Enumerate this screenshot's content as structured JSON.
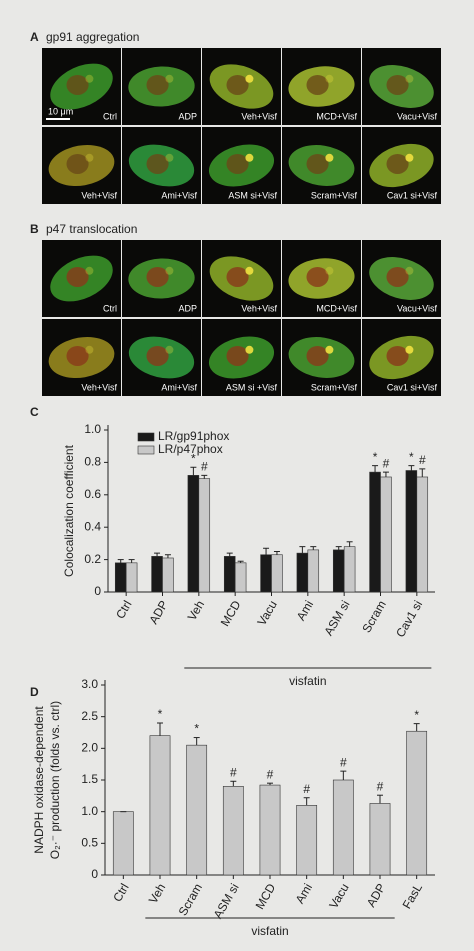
{
  "panels": {
    "A": {
      "label": "A",
      "title": "gp91 aggregation",
      "scale_bar": "10 μm",
      "images": [
        "Ctrl",
        "ADP",
        "Veh+Visf",
        "MCD+Visf",
        "Vacu+Visf",
        "Veh+Visf",
        "Ami+Visf",
        "ASM si+Visf",
        "Scram+Visf",
        "Cav1 si+Visf"
      ]
    },
    "B": {
      "label": "B",
      "title": "p47 translocation",
      "images": [
        "Ctrl",
        "ADP",
        "Veh+Visf",
        "MCD+Visf",
        "Vacu+Visf",
        "Veh+Visf",
        "Ami+Visf",
        "ASM si +Visf",
        "Scram+Visf",
        "Cav1 si+Visf"
      ]
    }
  },
  "chart_data": [
    {
      "type": "bar",
      "panel_label": "C",
      "ylabel": [
        "Colocalization coefficient"
      ],
      "bracket_label": "visfatin",
      "categories": [
        "Ctrl",
        "ADP",
        "Veh",
        "MCD",
        "Vacu",
        "Ami",
        "ASM si",
        "Scram",
        "Cav1 si"
      ],
      "series": [
        {
          "name": "LR/gp91phox",
          "color": "#1a1a1a",
          "values": [
            0.18,
            0.22,
            0.72,
            0.22,
            0.23,
            0.24,
            0.26,
            0.74,
            0.75
          ],
          "errors": [
            0.02,
            0.02,
            0.05,
            0.02,
            0.04,
            0.04,
            0.02,
            0.04,
            0.03
          ],
          "markers": [
            null,
            null,
            "*",
            null,
            null,
            null,
            null,
            "*",
            "*"
          ]
        },
        {
          "name": "LR/p47phox",
          "color": "#c8c8c8",
          "values": [
            0.18,
            0.21,
            0.7,
            0.18,
            0.23,
            0.26,
            0.28,
            0.71,
            0.71
          ],
          "errors": [
            0.02,
            0.02,
            0.02,
            0.01,
            0.02,
            0.02,
            0.03,
            0.03,
            0.05
          ],
          "markers": [
            null,
            null,
            "#",
            null,
            null,
            null,
            null,
            "#",
            "#"
          ]
        }
      ],
      "ylim": [
        0,
        1
      ],
      "yticks": [
        0,
        0.2,
        0.4,
        0.6,
        0.8,
        {
          "value": 1,
          "label": "1.0"
        }
      ]
    },
    {
      "type": "bar",
      "panel_label": "D",
      "ylabel": [
        "NADPH oxidase-dependent",
        "O₂·⁻ production (folds vs. ctrl)"
      ],
      "bracket_label": "visfatin",
      "categories": [
        "Ctrl",
        "Veh",
        "Scram",
        "ASM si",
        "MCD",
        "Ami",
        "Vacu",
        "ADP",
        "FasL"
      ],
      "series": [
        {
          "color": "#c8c8c8",
          "values": [
            1.0,
            2.2,
            2.05,
            1.4,
            1.42,
            1.1,
            1.5,
            1.13,
            2.27
          ],
          "errors": [
            0,
            0.2,
            0.12,
            0.08,
            0.03,
            0.12,
            0.14,
            0.13,
            0.12
          ],
          "markers": [
            null,
            "*",
            "*",
            "#",
            "#",
            "#",
            "#",
            "#",
            "*"
          ]
        }
      ],
      "ylim": [
        0,
        3
      ],
      "yticks": [
        0,
        0.5,
        {
          "value": 1,
          "label": "1.0"
        },
        1.5,
        {
          "value": 2,
          "label": "2.0"
        },
        2.5,
        {
          "value": 3,
          "label": "3.0"
        }
      ]
    }
  ]
}
